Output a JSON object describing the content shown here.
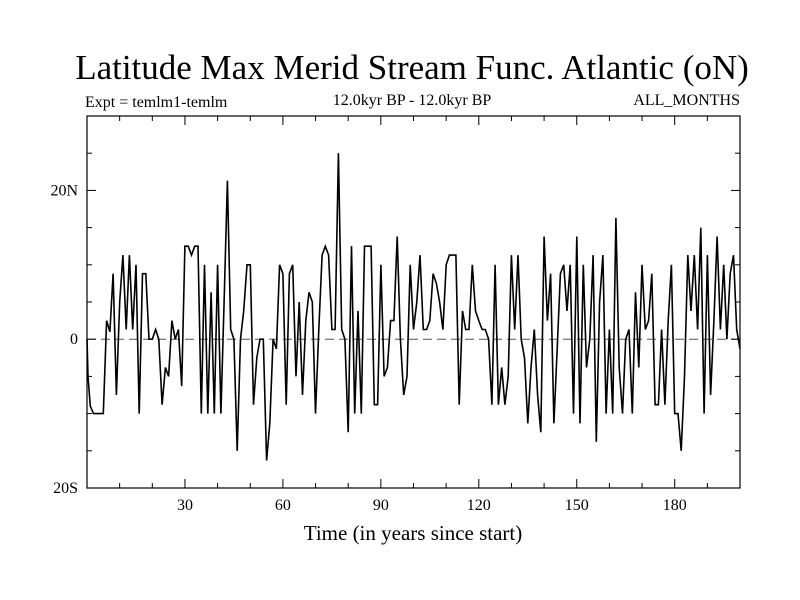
{
  "chart_data": {
    "type": "line",
    "title": "Latitude Max Merid Stream Func. Atlantic (oN)",
    "subtitle_left": "Expt = temlm1-temlm",
    "subtitle_center": "12.0kyr BP - 12.0kyr BP",
    "subtitle_right": "ALL_MONTHS",
    "xlabel": "Time (in years since start)",
    "ylabel": "",
    "xlim": [
      0,
      200
    ],
    "ylim": [
      -20,
      30
    ],
    "x_ticks": [
      {
        "value": 30,
        "label": "30"
      },
      {
        "value": 60,
        "label": "60"
      },
      {
        "value": 90,
        "label": "90"
      },
      {
        "value": 120,
        "label": "120"
      },
      {
        "value": 150,
        "label": "150"
      },
      {
        "value": 180,
        "label": "180"
      }
    ],
    "y_ticks": [
      {
        "value": 20,
        "label": "20N"
      },
      {
        "value": 0,
        "label": "0"
      },
      {
        "value": -20,
        "label": "20S"
      }
    ],
    "reference_line": {
      "y": 0,
      "style": "dashed"
    },
    "series": [
      {
        "values": [
          [
            0.0,
            0.0
          ],
          [
            0.3,
            -5.0
          ],
          [
            1,
            -9.0
          ],
          [
            2,
            -10.0
          ],
          [
            3,
            -10.0
          ],
          [
            4,
            -10.0
          ],
          [
            5,
            -10.0
          ],
          [
            6,
            2.5
          ],
          [
            7,
            1.0
          ],
          [
            8,
            8.8
          ],
          [
            9,
            -7.5
          ],
          [
            10,
            5.0
          ],
          [
            11,
            11.3
          ],
          [
            12,
            1.3
          ],
          [
            13,
            11.3
          ],
          [
            14,
            1.3
          ],
          [
            15,
            10.0
          ],
          [
            16,
            -10.0
          ],
          [
            17,
            8.8
          ],
          [
            18,
            8.8
          ],
          [
            19,
            0.0
          ],
          [
            20,
            0.0
          ],
          [
            21,
            1.3
          ],
          [
            22,
            0.0
          ],
          [
            23,
            -8.8
          ],
          [
            24,
            -3.8
          ],
          [
            25,
            -5.0
          ],
          [
            26,
            2.5
          ],
          [
            27,
            0.0
          ],
          [
            28,
            1.3
          ],
          [
            29,
            -6.3
          ],
          [
            30,
            12.5
          ],
          [
            31,
            12.5
          ],
          [
            32,
            11.3
          ],
          [
            33,
            12.5
          ],
          [
            34,
            12.5
          ],
          [
            35,
            -10.0
          ],
          [
            36,
            10.0
          ],
          [
            37,
            -10.0
          ],
          [
            38,
            6.3
          ],
          [
            39,
            -10.0
          ],
          [
            40,
            10.0
          ],
          [
            41,
            -10.0
          ],
          [
            42,
            5.0
          ],
          [
            43,
            21.3
          ],
          [
            44,
            1.3
          ],
          [
            45,
            0.0
          ],
          [
            46,
            -15.0
          ],
          [
            47,
            0.0
          ],
          [
            48,
            3.8
          ],
          [
            49,
            10.0
          ],
          [
            50,
            10.0
          ],
          [
            51,
            -8.8
          ],
          [
            52,
            -2.5
          ],
          [
            53,
            0.0
          ],
          [
            54,
            0.0
          ],
          [
            55,
            -16.3
          ],
          [
            56,
            -11.3
          ],
          [
            57,
            0.0
          ],
          [
            58,
            -1.3
          ],
          [
            59,
            10.0
          ],
          [
            60,
            8.8
          ],
          [
            61,
            -8.8
          ],
          [
            62,
            8.8
          ],
          [
            63,
            10.0
          ],
          [
            64,
            -5.0
          ],
          [
            65,
            5.0
          ],
          [
            66,
            -7.5
          ],
          [
            67,
            2.5
          ],
          [
            68,
            6.3
          ],
          [
            69,
            5.0
          ],
          [
            70,
            -10.0
          ],
          [
            71,
            1.3
          ],
          [
            72,
            11.3
          ],
          [
            73,
            12.5
          ],
          [
            74,
            11.3
          ],
          [
            75,
            1.3
          ],
          [
            76,
            1.3
          ],
          [
            77,
            25.0
          ],
          [
            78,
            1.3
          ],
          [
            79,
            0.0
          ],
          [
            80,
            -12.5
          ],
          [
            81,
            12.5
          ],
          [
            82,
            -10.0
          ],
          [
            83,
            3.8
          ],
          [
            84,
            -10.0
          ],
          [
            85,
            12.5
          ],
          [
            86,
            12.5
          ],
          [
            87,
            12.5
          ],
          [
            88,
            -8.8
          ],
          [
            89,
            -8.8
          ],
          [
            90,
            10.0
          ],
          [
            91,
            -5.0
          ],
          [
            92,
            -3.8
          ],
          [
            93,
            2.5
          ],
          [
            94,
            2.5
          ],
          [
            95,
            13.8
          ],
          [
            96,
            0.0
          ],
          [
            97,
            -7.5
          ],
          [
            98,
            -5.0
          ],
          [
            99,
            10.0
          ],
          [
            100,
            1.3
          ],
          [
            101,
            5.0
          ],
          [
            102,
            11.3
          ],
          [
            103,
            1.3
          ],
          [
            104,
            1.3
          ],
          [
            105,
            2.5
          ],
          [
            106,
            8.8
          ],
          [
            107,
            7.5
          ],
          [
            108,
            5.0
          ],
          [
            109,
            1.3
          ],
          [
            110,
            10.0
          ],
          [
            111,
            11.3
          ],
          [
            112,
            11.3
          ],
          [
            113,
            11.3
          ],
          [
            114,
            -8.8
          ],
          [
            115,
            3.8
          ],
          [
            116,
            1.3
          ],
          [
            117,
            1.3
          ],
          [
            118,
            10.0
          ],
          [
            119,
            3.8
          ],
          [
            120,
            2.5
          ],
          [
            121,
            1.3
          ],
          [
            122,
            1.3
          ],
          [
            123,
            0.0
          ],
          [
            124,
            -8.8
          ],
          [
            125,
            10.0
          ],
          [
            126,
            -8.8
          ],
          [
            127,
            -3.8
          ],
          [
            128,
            -8.8
          ],
          [
            129,
            -5.0
          ],
          [
            130,
            11.3
          ],
          [
            131,
            1.3
          ],
          [
            132,
            11.3
          ],
          [
            133,
            0.0
          ],
          [
            134,
            -2.5
          ],
          [
            135,
            -11.3
          ],
          [
            136,
            -3.8
          ],
          [
            137,
            1.3
          ],
          [
            138,
            -7.5
          ],
          [
            139,
            -12.5
          ],
          [
            140,
            13.8
          ],
          [
            141,
            2.5
          ],
          [
            142,
            8.8
          ],
          [
            143,
            -11.3
          ],
          [
            144,
            -1.3
          ],
          [
            145,
            8.8
          ],
          [
            146,
            10.0
          ],
          [
            147,
            3.8
          ],
          [
            148,
            10.0
          ],
          [
            149,
            -10.0
          ],
          [
            150,
            13.8
          ],
          [
            151,
            -11.3
          ],
          [
            152,
            10.0
          ],
          [
            153,
            -3.8
          ],
          [
            154,
            0.0
          ],
          [
            155,
            11.3
          ],
          [
            156,
            -13.8
          ],
          [
            157,
            5.0
          ],
          [
            158,
            11.3
          ],
          [
            159,
            -10.0
          ],
          [
            160,
            1.3
          ],
          [
            161,
            -10.0
          ],
          [
            162,
            16.3
          ],
          [
            163,
            -3.8
          ],
          [
            164,
            -10.0
          ],
          [
            165,
            0.0
          ],
          [
            166,
            1.3
          ],
          [
            167,
            -10.0
          ],
          [
            168,
            6.3
          ],
          [
            169,
            -3.8
          ],
          [
            170,
            10.0
          ],
          [
            171,
            1.3
          ],
          [
            172,
            2.5
          ],
          [
            173,
            8.8
          ],
          [
            174,
            -8.8
          ],
          [
            175,
            -8.8
          ],
          [
            176,
            1.3
          ],
          [
            177,
            -8.8
          ],
          [
            178,
            2.5
          ],
          [
            179,
            10.0
          ],
          [
            180,
            -10.0
          ],
          [
            181,
            -10.0
          ],
          [
            182,
            -15.0
          ],
          [
            183,
            -5.0
          ],
          [
            184,
            11.3
          ],
          [
            185,
            3.8
          ],
          [
            186,
            11.3
          ],
          [
            187,
            1.3
          ],
          [
            188,
            15.0
          ],
          [
            189,
            -10.0
          ],
          [
            190,
            11.3
          ],
          [
            191,
            -7.5
          ],
          [
            192,
            2.5
          ],
          [
            193,
            13.8
          ],
          [
            194,
            1.3
          ],
          [
            195,
            10.0
          ],
          [
            196,
            0.0
          ],
          [
            197,
            8.8
          ],
          [
            198,
            11.3
          ],
          [
            199,
            1.3
          ],
          [
            200,
            -1.3
          ]
        ]
      }
    ]
  }
}
